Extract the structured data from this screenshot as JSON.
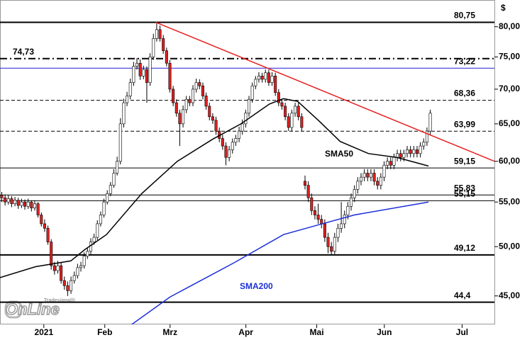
{
  "chart_data": {
    "type": "candlestick",
    "currency": "$",
    "log": true,
    "ylim": [
      42.34,
      84.7
    ],
    "yticks": [
      {
        "value": 45,
        "label": "45,00"
      },
      {
        "value": 50,
        "label": "50,00"
      },
      {
        "value": 55,
        "label": "55,00"
      },
      {
        "value": 60,
        "label": "60,00"
      },
      {
        "value": 65,
        "label": "65,00"
      },
      {
        "value": 70,
        "label": "70,00"
      },
      {
        "value": 75,
        "label": "75,00"
      },
      {
        "value": 80,
        "label": "80,00"
      }
    ],
    "xlim": [
      0,
      150
    ],
    "xticks": [
      {
        "value": 13.3,
        "label": "2021"
      },
      {
        "value": 31.8,
        "label": "Feb"
      },
      {
        "value": 51.6,
        "label": "Mrz"
      },
      {
        "value": 74.6,
        "label": "Apr"
      },
      {
        "value": 96.1,
        "label": "Mai"
      },
      {
        "value": 116.6,
        "label": "Jun"
      },
      {
        "value": 140.2,
        "label": "Jul"
      }
    ],
    "up_color": "#ffffff",
    "down_color": "#e02020",
    "ohlc": [
      [
        55.8,
        56.2,
        55.0,
        55.5
      ],
      [
        55.5,
        55.9,
        54.6,
        55.0
      ],
      [
        55.0,
        55.8,
        54.7,
        55.4
      ],
      [
        55.4,
        55.7,
        54.4,
        54.8
      ],
      [
        54.8,
        55.6,
        54.5,
        55.2
      ],
      [
        55.2,
        55.5,
        54.2,
        54.6
      ],
      [
        54.6,
        55.4,
        54.3,
        55.0
      ],
      [
        55.0,
        55.3,
        54.1,
        54.5
      ],
      [
        54.5,
        55.4,
        54.2,
        55.0
      ],
      [
        55.0,
        55.2,
        53.9,
        54.3
      ],
      [
        54.3,
        55.2,
        54.0,
        54.8
      ],
      [
        54.8,
        55.0,
        53.2,
        53.5
      ],
      [
        53.5,
        53.8,
        52.2,
        52.5
      ],
      [
        52.5,
        53.0,
        51.6,
        52.0
      ],
      [
        52.0,
        52.3,
        50.2,
        50.5
      ],
      [
        50.5,
        50.8,
        47.6,
        48.0
      ],
      [
        48.0,
        48.4,
        47.1,
        47.5
      ],
      [
        47.5,
        48.5,
        47.2,
        48.0
      ],
      [
        48.0,
        48.3,
        46.2,
        46.5
      ],
      [
        46.5,
        46.9,
        45.6,
        46.0
      ],
      [
        46.0,
        46.4,
        45.0,
        45.5
      ],
      [
        45.5,
        46.9,
        45.2,
        46.5
      ],
      [
        46.5,
        47.4,
        46.2,
        47.0
      ],
      [
        47.0,
        48.2,
        46.7,
        47.8
      ],
      [
        47.8,
        48.4,
        47.4,
        48.0
      ],
      [
        48.0,
        49.4,
        47.7,
        49.0
      ],
      [
        49.0,
        49.9,
        48.7,
        49.5
      ],
      [
        49.5,
        50.9,
        49.2,
        50.5
      ],
      [
        50.5,
        51.4,
        50.2,
        51.0
      ],
      [
        51.0,
        52.9,
        50.7,
        52.5
      ],
      [
        52.5,
        53.9,
        52.2,
        53.5
      ],
      [
        53.5,
        55.4,
        53.2,
        55.0
      ],
      [
        55.0,
        56.4,
        54.7,
        56.0
      ],
      [
        56.0,
        57.4,
        55.7,
        57.0
      ],
      [
        57.0,
        59.0,
        56.7,
        58.5
      ],
      [
        58.5,
        60.6,
        58.2,
        60.0
      ],
      [
        60.0,
        65.8,
        59.6,
        65.0
      ],
      [
        65.0,
        68.6,
        64.5,
        68.0
      ],
      [
        68.0,
        69.6,
        67.5,
        69.0
      ],
      [
        69.0,
        71.6,
        68.5,
        71.0
      ],
      [
        71.0,
        74.2,
        70.5,
        73.5
      ],
      [
        73.5,
        74.8,
        73.0,
        74.0
      ],
      [
        74.0,
        74.6,
        71.4,
        72.0
      ],
      [
        72.0,
        73.6,
        71.5,
        73.0
      ],
      [
        73.0,
        73.5,
        68.0,
        71.0
      ],
      [
        71.0,
        75.6,
        70.5,
        75.0
      ],
      [
        75.0,
        78.8,
        74.5,
        78.0
      ],
      [
        78.0,
        80.75,
        77.5,
        79.5
      ],
      [
        79.5,
        80.2,
        77.5,
        78.0
      ],
      [
        78.0,
        78.6,
        75.5,
        76.0
      ],
      [
        76.0,
        76.5,
        73.5,
        74.0
      ],
      [
        74.0,
        74.5,
        69.5,
        70.0
      ],
      [
        70.0,
        70.5,
        67.5,
        68.0
      ],
      [
        68.0,
        68.5,
        66.0,
        66.5
      ],
      [
        66.5,
        67.0,
        62.0,
        65.0
      ],
      [
        65.0,
        67.6,
        64.5,
        67.0
      ],
      [
        67.0,
        69.0,
        66.5,
        68.5
      ],
      [
        68.5,
        69.0,
        67.5,
        68.0
      ],
      [
        68.0,
        70.6,
        67.5,
        70.0
      ],
      [
        70.0,
        71.6,
        69.5,
        71.0
      ],
      [
        71.0,
        71.5,
        70.0,
        70.5
      ],
      [
        70.5,
        71.0,
        68.5,
        69.0
      ],
      [
        69.0,
        69.5,
        67.0,
        67.5
      ],
      [
        67.5,
        68.0,
        65.5,
        66.0
      ],
      [
        66.0,
        66.5,
        65.0,
        65.5
      ],
      [
        65.5,
        66.0,
        63.5,
        64.0
      ],
      [
        64.0,
        64.5,
        62.5,
        63.0
      ],
      [
        63.0,
        63.5,
        61.5,
        62.0
      ],
      [
        62.0,
        62.5,
        59.5,
        60.5
      ],
      [
        60.5,
        62.0,
        60.0,
        61.5
      ],
      [
        61.5,
        63.0,
        61.0,
        62.5
      ],
      [
        62.5,
        63.5,
        62.0,
        63.0
      ],
      [
        63.0,
        64.6,
        62.5,
        64.0
      ],
      [
        64.0,
        65.6,
        63.5,
        65.0
      ],
      [
        65.0,
        67.0,
        64.5,
        66.5
      ],
      [
        66.5,
        69.0,
        66.0,
        68.5
      ],
      [
        68.5,
        71.0,
        68.0,
        70.5
      ],
      [
        70.5,
        72.0,
        70.0,
        71.5
      ],
      [
        71.5,
        72.6,
        71.0,
        72.0
      ],
      [
        72.0,
        72.5,
        71.0,
        71.5
      ],
      [
        71.5,
        73.0,
        71.0,
        72.5
      ],
      [
        72.5,
        73.0,
        70.5,
        71.0
      ],
      [
        71.0,
        72.6,
        70.5,
        72.0
      ],
      [
        72.0,
        72.5,
        69.0,
        69.5
      ],
      [
        69.5,
        70.0,
        67.5,
        68.0
      ],
      [
        68.0,
        68.5,
        67.0,
        67.5
      ],
      [
        67.5,
        68.0,
        65.5,
        66.0
      ],
      [
        66.0,
        66.5,
        64.0,
        64.5
      ],
      [
        64.5,
        67.0,
        64.0,
        66.5
      ],
      [
        66.5,
        68.0,
        66.0,
        67.5
      ],
      [
        67.5,
        68.0,
        65.5,
        66.0
      ],
      [
        66.0,
        66.5,
        64.0,
        64.5
      ],
      [
        57.5,
        58.2,
        56.5,
        57.0
      ],
      [
        57.0,
        57.5,
        55.0,
        55.5
      ],
      [
        55.5,
        56.0,
        53.5,
        54.0
      ],
      [
        54.0,
        54.5,
        53.0,
        53.5
      ],
      [
        53.5,
        54.8,
        52.5,
        53.0
      ],
      [
        53.0,
        53.5,
        52.0,
        52.5
      ],
      [
        52.5,
        53.0,
        50.5,
        51.0
      ],
      [
        51.0,
        51.5,
        49.3,
        50.0
      ],
      [
        50.0,
        50.5,
        49.1,
        49.5
      ],
      [
        49.5,
        51.5,
        49.2,
        51.0
      ],
      [
        51.0,
        52.5,
        50.5,
        52.0
      ],
      [
        52.0,
        55.0,
        51.5,
        52.5
      ],
      [
        52.5,
        54.0,
        52.0,
        53.5
      ],
      [
        53.5,
        55.0,
        53.0,
        54.5
      ],
      [
        54.5,
        56.0,
        54.0,
        55.5
      ],
      [
        55.5,
        57.0,
        55.0,
        56.5
      ],
      [
        56.5,
        58.0,
        56.0,
        57.5
      ],
      [
        57.5,
        58.5,
        57.0,
        58.0
      ],
      [
        58.0,
        59.0,
        57.5,
        58.5
      ],
      [
        58.5,
        59.0,
        57.5,
        58.0
      ],
      [
        58.0,
        59.0,
        57.5,
        58.5
      ],
      [
        58.5,
        59.0,
        57.0,
        57.5
      ],
      [
        57.5,
        58.0,
        56.5,
        57.0
      ],
      [
        57.0,
        58.5,
        56.5,
        58.0
      ],
      [
        58.0,
        60.0,
        57.5,
        59.5
      ],
      [
        59.5,
        60.5,
        59.0,
        60.0
      ],
      [
        60.0,
        60.5,
        59.0,
        59.5
      ],
      [
        59.5,
        61.0,
        59.0,
        60.5
      ],
      [
        60.5,
        61.5,
        60.0,
        61.0
      ],
      [
        61.0,
        61.5,
        60.0,
        60.5
      ],
      [
        60.5,
        61.5,
        60.0,
        61.0
      ],
      [
        61.0,
        62.0,
        60.5,
        61.5
      ],
      [
        61.5,
        62.0,
        60.5,
        61.0
      ],
      [
        61.0,
        62.0,
        60.5,
        61.5
      ],
      [
        61.5,
        62.0,
        60.5,
        61.0
      ],
      [
        61.0,
        62.5,
        60.5,
        62.0
      ],
      [
        62.0,
        63.0,
        61.5,
        62.5
      ],
      [
        62.5,
        64.5,
        62.0,
        64.0
      ],
      [
        64.0,
        67.0,
        63.5,
        66.5
      ]
    ],
    "lines": [
      {
        "name": "SMA50",
        "color": "#000000",
        "x": [
          0,
          10.8,
          21.5,
          25.8,
          32.3,
          43,
          53.8,
          64.5,
          73.1,
          81.7,
          86,
          90.3,
          96.8,
          103.2,
          111.8,
          120.4,
          130
        ],
        "values": [
          46.8,
          47.9,
          48.5,
          49.7,
          51.3,
          56.0,
          60.0,
          62.9,
          65.0,
          67.8,
          68.6,
          68.2,
          65.4,
          62.6,
          61.0,
          60.5,
          59.4
        ]
      },
      {
        "name": "SMA200",
        "color": "#1c2fd8",
        "x": [
          39.8,
          51.6,
          71,
          86,
          96.8,
          107.5,
          130
        ],
        "values": [
          42.3,
          44.9,
          48.3,
          51.3,
          52.4,
          53.5,
          55.0
        ]
      }
    ],
    "trendline": {
      "color": "#e82020",
      "x": [
        47.3,
        150
      ],
      "values": [
        80.75,
        60.0
      ]
    },
    "levels": [
      {
        "value": 80.75,
        "label": "80,75",
        "style": "thick",
        "color": "#000000",
        "side": "right"
      },
      {
        "value": 74.73,
        "label": "74,73",
        "style": "dashdot",
        "color": "#000000",
        "side": "left"
      },
      {
        "value": 73.22,
        "label": "73,22",
        "style": "thin",
        "color": "#2020d0",
        "side": "right"
      },
      {
        "value": 68.36,
        "label": "68,36",
        "style": "dashed",
        "color": "#000000",
        "side": "right"
      },
      {
        "value": 63.99,
        "label": "63,99",
        "style": "dashed",
        "color": "#000000",
        "side": "right"
      },
      {
        "value": 59.15,
        "label": "59,15",
        "style": "thin",
        "color": "#000000",
        "side": "right"
      },
      {
        "value": 55.83,
        "label": "55,83",
        "style": "thin",
        "color": "#000000",
        "side": "right"
      },
      {
        "value": 55.15,
        "label": "55,15",
        "style": "thin",
        "color": "#000000",
        "side": "right"
      },
      {
        "value": 49.12,
        "label": "49,12",
        "style": "thick",
        "color": "#000000",
        "side": "right"
      },
      {
        "value": 44.4,
        "label": "44,4",
        "style": "thick",
        "color": "#000000",
        "side": "right"
      }
    ],
    "logo": {
      "main": "OnLine",
      "sub": "Tradesignal®"
    }
  }
}
